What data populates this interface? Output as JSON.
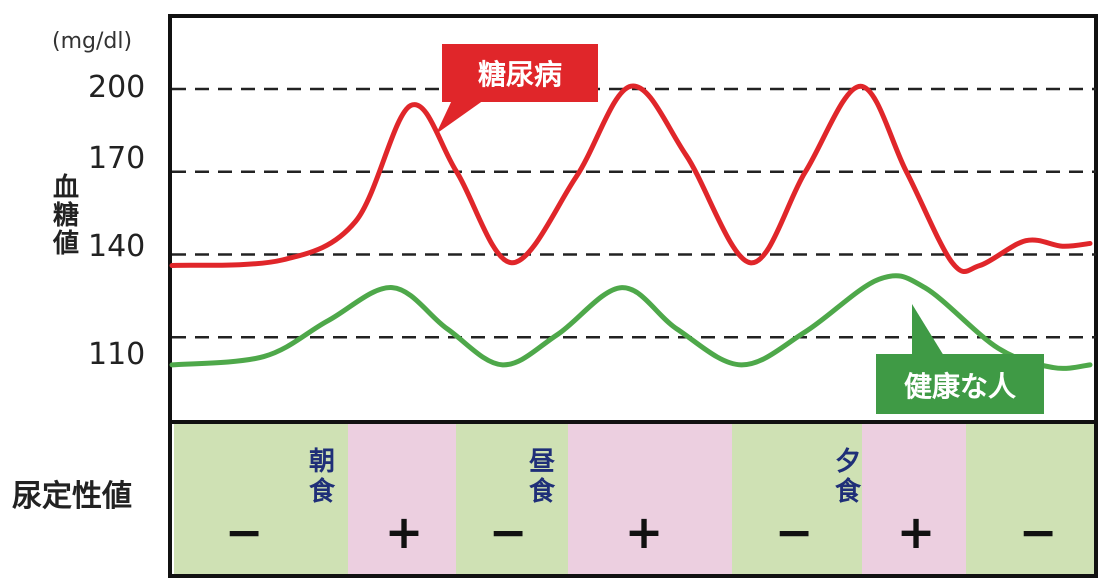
{
  "chart_data": {
    "type": "line",
    "unit_label": "(mg/dl)",
    "ylabel": "血糖値",
    "y_ticks": [
      "200",
      "170",
      "140",
      "110"
    ],
    "y_tick_values": [
      200,
      170,
      140,
      110
    ],
    "ylim": [
      80,
      225
    ],
    "grid": "dashed horizontal at ticks",
    "series": [
      {
        "name": "糖尿病",
        "color": "#e0262a",
        "callout_color": "#e0262a",
        "x": [
          0.0,
          0.12,
          0.2,
          0.26,
          0.31,
          0.37,
          0.44,
          0.5,
          0.56,
          0.63,
          0.69,
          0.75,
          0.8,
          0.85,
          0.88,
          0.93,
          0.97,
          1.0
        ],
        "values": [
          136,
          138,
          152,
          194,
          170,
          137,
          168,
          201,
          176,
          137,
          170,
          201,
          170,
          137,
          136,
          145,
          143,
          144
        ]
      },
      {
        "name": "健康な人",
        "color": "#4ea84a",
        "callout_color": "#3f9a45",
        "x": [
          0.0,
          0.1,
          0.17,
          0.24,
          0.3,
          0.36,
          0.42,
          0.49,
          0.55,
          0.62,
          0.69,
          0.77,
          0.82,
          0.9,
          0.96,
          1.0
        ],
        "values": [
          100,
          103,
          116,
          128,
          113,
          100,
          111,
          128,
          113,
          100,
          112,
          131,
          128,
          106,
          99,
          100
        ]
      }
    ]
  },
  "urine_band": {
    "label": "尿定性値",
    "colors": {
      "negative": "#cfe1b4",
      "positive": "#eccfe0"
    },
    "segments": [
      "green",
      "pink",
      "green",
      "pink",
      "green",
      "pink",
      "green"
    ],
    "signs": [
      "−",
      "+",
      "−",
      "+",
      "−",
      "+",
      "−"
    ],
    "meals": [
      {
        "line1": "朝",
        "line2": "食"
      },
      {
        "line1": "昼",
        "line2": "食"
      },
      {
        "line1": "夕",
        "line2": "食"
      }
    ]
  }
}
